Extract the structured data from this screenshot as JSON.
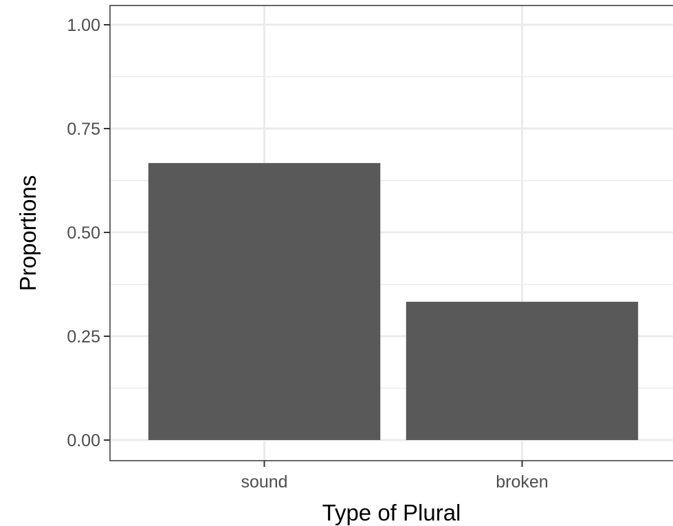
{
  "chart_data": {
    "type": "bar",
    "categories": [
      "sound",
      "broken"
    ],
    "values": [
      0.667,
      0.333
    ],
    "xlabel": "Type of Plural",
    "ylabel": "Proportions",
    "ylim": [
      0,
      1.0
    ],
    "yticks": [
      0.0,
      0.25,
      0.5,
      0.75,
      1.0
    ],
    "ytick_labels": [
      "0.00",
      "0.25",
      "0.50",
      "0.75",
      "1.00"
    ],
    "grid": true,
    "bar_color": "#595959",
    "grid_color": "#ebebeb",
    "panel_border_color": "#333333"
  }
}
